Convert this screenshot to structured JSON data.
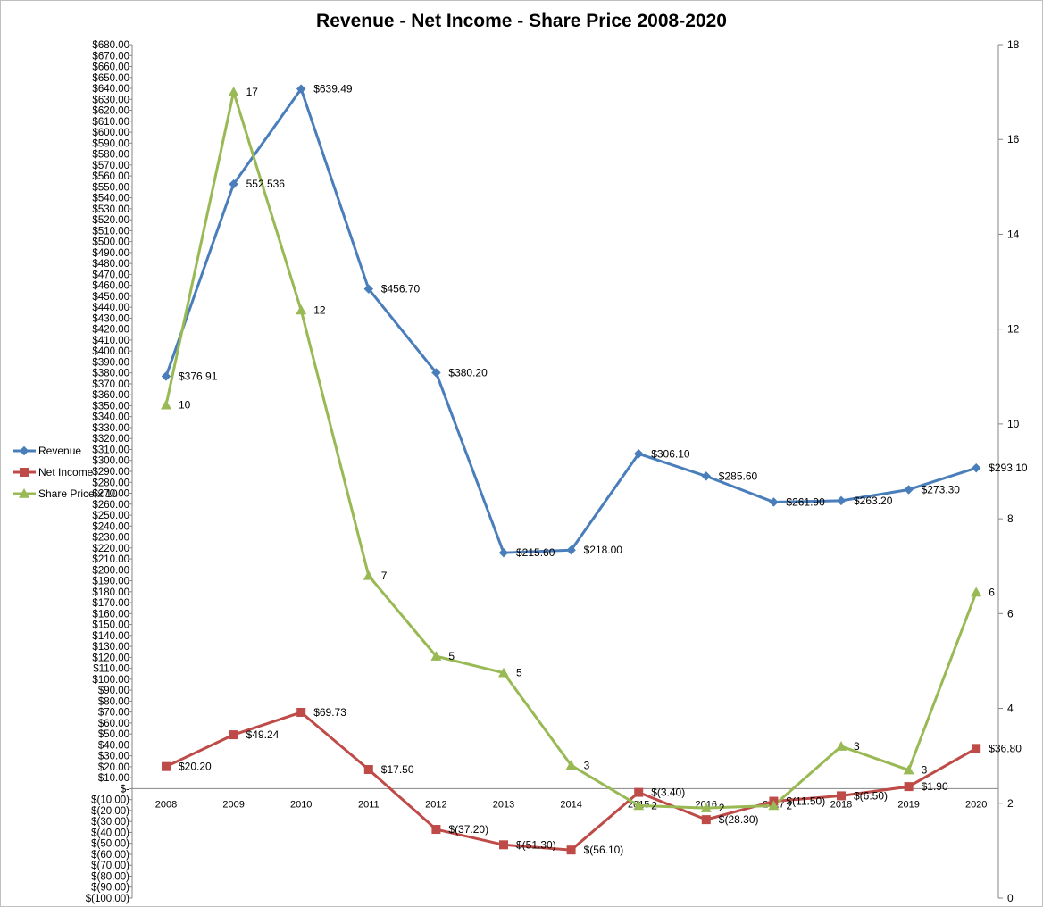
{
  "chart_data": {
    "type": "line",
    "title": "Revenue - Net Income - Share Price  2008-2020",
    "categories": [
      "2008",
      "2009",
      "2010",
      "2011",
      "2012",
      "2013",
      "2014",
      "2015",
      "2016",
      "2017",
      "2018",
      "2019",
      "2020"
    ],
    "series": [
      {
        "name": "Revenue",
        "axis": "left",
        "color": "#4a7ebb",
        "marker": "diamond",
        "values": [
          376.91,
          552.536,
          639.49,
          456.7,
          380.2,
          215.6,
          218.0,
          306.1,
          285.6,
          261.9,
          263.2,
          273.3,
          293.1
        ],
        "labels": [
          "$376.91",
          "552.536",
          "$639.49",
          "$456.70",
          "$380.20",
          "$215.60",
          "$218.00",
          "$306.10",
          "$285.60",
          "$261.90",
          "$263.20",
          "$273.30",
          "$293.10"
        ]
      },
      {
        "name": "Net Income",
        "axis": "left",
        "color": "#be4b48",
        "marker": "square",
        "values": [
          20.2,
          49.24,
          69.73,
          17.5,
          -37.2,
          -51.3,
          -56.1,
          -3.4,
          -28.3,
          -11.5,
          -6.5,
          1.9,
          36.8
        ],
        "labels": [
          "$20.20",
          "$49.24",
          "$69.73",
          "$17.50",
          "$(37.20)",
          "$(51.30)",
          "$(56.10)",
          "$(3.40)",
          "$(28.30)",
          "$(11.50)",
          "$(6.50)",
          "$1.90",
          "$36.80"
        ]
      },
      {
        "name": "Share Price x 10",
        "axis": "right",
        "color": "#98b954",
        "marker": "triangle",
        "values": [
          10.4,
          17,
          12.4,
          6.8,
          5.1,
          4.75,
          2.8,
          1.95,
          1.9,
          1.95,
          3.2,
          2.7,
          6.45
        ],
        "labels": [
          "10",
          "17",
          "12",
          "7",
          "5",
          "5",
          "3",
          "2",
          "2",
          "2",
          "3",
          "3",
          "6"
        ]
      }
    ],
    "y_left": {
      "min": -100,
      "max": 680,
      "step": 10,
      "tick_labels": [
        "$680.00",
        "$670.00",
        "$660.00",
        "$650.00",
        "$640.00",
        "$630.00",
        "$620.00",
        "$610.00",
        "$600.00",
        "$590.00",
        "$580.00",
        "$570.00",
        "$560.00",
        "$550.00",
        "$540.00",
        "$530.00",
        "$520.00",
        "$510.00",
        "$500.00",
        "$490.00",
        "$480.00",
        "$470.00",
        "$460.00",
        "$450.00",
        "$440.00",
        "$430.00",
        "$420.00",
        "$410.00",
        "$400.00",
        "$390.00",
        "$380.00",
        "$370.00",
        "$360.00",
        "$350.00",
        "$340.00",
        "$330.00",
        "$320.00",
        "$310.00",
        "$300.00",
        "$290.00",
        "$280.00",
        "$270.00",
        "$260.00",
        "$250.00",
        "$240.00",
        "$230.00",
        "$220.00",
        "$210.00",
        "$200.00",
        "$190.00",
        "$180.00",
        "$170.00",
        "$160.00",
        "$150.00",
        "$140.00",
        "$130.00",
        "$120.00",
        "$110.00",
        "$100.00",
        "$90.00",
        "$80.00",
        "$70.00",
        "$60.00",
        "$50.00",
        "$40.00",
        "$30.00",
        "$20.00",
        "$10.00",
        "$-",
        "$(10.00)",
        "$(20.00)",
        "$(30.00)",
        "$(40.00)",
        "$(50.00)",
        "$(60.00)",
        "$(70.00)",
        "$(80.00)",
        "$(90.00)",
        "$(100.00)"
      ]
    },
    "y_right": {
      "min": 0,
      "max": 18,
      "tick_labels": [
        "18",
        "16",
        "14",
        "12",
        "10",
        "8",
        "6",
        "4",
        "2",
        "0"
      ]
    },
    "legend": {
      "placement": "left",
      "entries": [
        "Revenue",
        "Net Income",
        "Share Price x 10"
      ]
    },
    "grid": false
  }
}
